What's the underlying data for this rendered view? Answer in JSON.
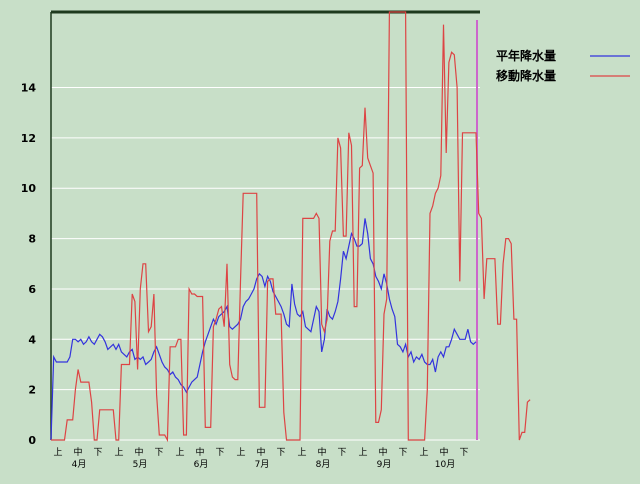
{
  "chart_data": {
    "type": "line",
    "title": "",
    "xlabel": "",
    "ylabel": "",
    "ylim": [
      0,
      17
    ],
    "yticks": [
      0,
      2,
      4,
      6,
      8,
      10,
      12,
      14
    ],
    "grid": true,
    "legend_position": "top-right",
    "x_period_labels": [
      "上",
      "中",
      "下"
    ],
    "months": [
      "4月",
      "5月",
      "6月",
      "7月",
      "8月",
      "9月",
      "10月"
    ],
    "colors": {
      "background": "#c8dfc8",
      "grid": "#ffffff",
      "frame": "#1e3a1e",
      "marker_line": "#cc66cc"
    },
    "series": [
      {
        "name": "平年降水量",
        "color": "#3333dd",
        "values": [
          0.0,
          3.3,
          3.1,
          3.1,
          3.1,
          3.1,
          3.1,
          3.3,
          4.0,
          4.0,
          3.9,
          4.0,
          3.8,
          3.9,
          4.1,
          3.9,
          3.8,
          4.0,
          4.2,
          4.1,
          3.9,
          3.6,
          3.7,
          3.8,
          3.6,
          3.8,
          3.5,
          3.4,
          3.3,
          3.5,
          3.6,
          3.2,
          3.3,
          3.2,
          3.3,
          3.0,
          3.1,
          3.2,
          3.5,
          3.7,
          3.4,
          3.1,
          2.9,
          2.8,
          2.6,
          2.7,
          2.5,
          2.4,
          2.2,
          2.1,
          1.9,
          2.1,
          2.3,
          2.4,
          2.5,
          3.0,
          3.5,
          3.9,
          4.2,
          4.5,
          4.8,
          4.6,
          4.9,
          5.0,
          5.1,
          5.3,
          4.5,
          4.4,
          4.5,
          4.6,
          4.8,
          5.3,
          5.5,
          5.6,
          5.8,
          6.0,
          6.4,
          6.6,
          6.5,
          6.1,
          6.5,
          6.3,
          5.9,
          5.7,
          5.5,
          5.3,
          5.0,
          4.6,
          4.5,
          6.2,
          5.4,
          5.0,
          4.9,
          5.1,
          4.5,
          4.4,
          4.3,
          4.8,
          5.3,
          5.1,
          3.5,
          4.0,
          5.2,
          4.9,
          4.8,
          5.1,
          5.5,
          6.4,
          7.5,
          7.2,
          7.7,
          8.2,
          8.0,
          7.7,
          7.7,
          7.8,
          8.8,
          8.2,
          7.2,
          7.0,
          6.5,
          6.3,
          6.0,
          6.6,
          6.2,
          5.6,
          5.2,
          4.9,
          3.8,
          3.7,
          3.5,
          3.8,
          3.3,
          3.5,
          3.1,
          3.3,
          3.2,
          3.4,
          3.1,
          3.0,
          3.0,
          3.2,
          2.7,
          3.3,
          3.5,
          3.3,
          3.7,
          3.7,
          4.0,
          4.4,
          4.2,
          4.0,
          4.0,
          4.0,
          4.4,
          3.9,
          3.8,
          3.9
        ]
      },
      {
        "name": "移動降水量",
        "color": "#dd4444",
        "values": [
          0.0,
          0.0,
          0.0,
          0.0,
          0.0,
          0.0,
          0.8,
          0.8,
          0.8,
          2.0,
          2.8,
          2.3,
          2.3,
          2.3,
          2.3,
          1.5,
          0.0,
          0.0,
          1.2,
          1.2,
          1.2,
          1.2,
          1.2,
          1.2,
          0.0,
          0.0,
          3.0,
          3.0,
          3.0,
          3.0,
          5.8,
          5.5,
          2.8,
          6.0,
          7.0,
          7.0,
          4.3,
          4.5,
          5.8,
          1.8,
          0.2,
          0.2,
          0.2,
          0.0,
          3.7,
          3.7,
          3.7,
          4.0,
          4.0,
          0.2,
          0.2,
          6.0,
          5.8,
          5.8,
          5.7,
          5.7,
          5.7,
          0.5,
          0.5,
          0.5,
          4.5,
          4.8,
          5.2,
          5.3,
          4.5,
          7.0,
          3.0,
          2.5,
          2.4,
          2.4,
          6.3,
          9.8,
          9.8,
          9.8,
          9.8,
          9.8,
          9.8,
          1.3,
          1.3,
          1.3,
          6.3,
          6.4,
          6.4,
          5.0,
          5.0,
          5.0,
          1.1,
          0.0,
          0.0,
          0.0,
          0.0,
          0.0,
          0.0,
          8.8,
          8.8,
          8.8,
          8.8,
          8.8,
          9.0,
          8.8,
          4.6,
          4.3,
          4.8,
          7.9,
          8.3,
          8.3,
          12.0,
          11.6,
          8.1,
          8.1,
          12.2,
          11.7,
          5.3,
          5.3,
          10.8,
          10.9,
          13.2,
          11.2,
          10.9,
          10.6,
          0.7,
          0.7,
          1.2,
          5.0,
          5.6,
          17.0,
          17.0,
          17.0,
          17.0,
          17.0,
          17.0,
          17.0,
          0.0,
          0.0,
          0.0,
          0.0,
          0.0,
          0.0,
          0.0,
          2.0,
          9.0,
          9.3,
          9.8,
          10.0,
          10.5,
          16.5,
          11.4,
          15.0,
          15.4,
          15.3,
          14.0,
          6.3,
          12.2,
          12.2,
          12.2,
          12.2,
          12.2,
          12.2,
          9.0,
          8.8,
          5.6,
          7.2,
          7.2,
          7.2,
          7.2,
          4.6,
          4.6,
          7.0,
          8.0,
          8.0,
          7.8,
          4.8,
          4.8,
          0.0,
          0.3,
          0.3,
          1.5,
          1.6
        ]
      }
    ]
  }
}
